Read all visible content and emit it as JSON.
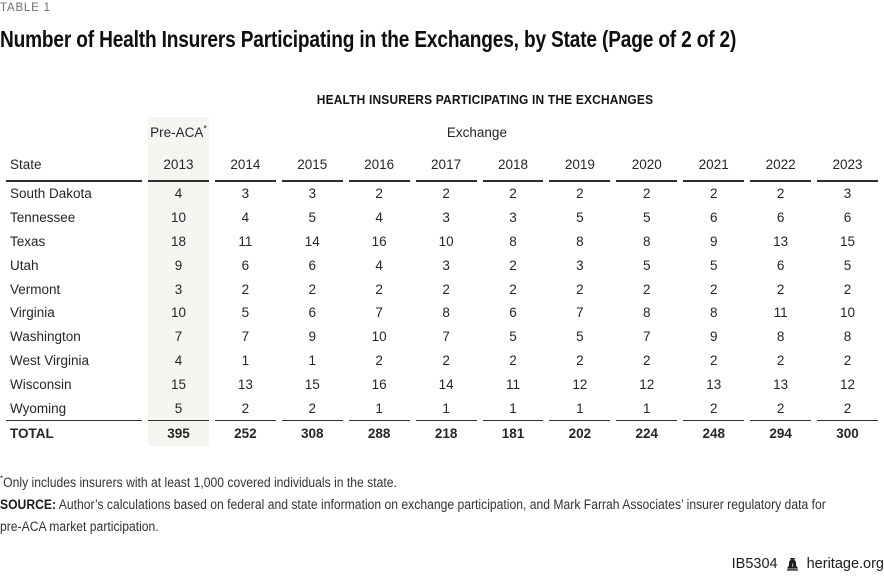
{
  "meta": {
    "table_label": "TABLE 1",
    "title": "Number of Health Insurers Participating in the Exchanges, by State (Page of 2 of 2)"
  },
  "chart_data": {
    "type": "table",
    "title": "HEALTH INSURERS PARTICIPATING IN THE EXCHANGES",
    "group_headers": {
      "pre_aca_label": "Pre-ACA",
      "pre_aca_sup": "*",
      "exchange_label": "Exchange"
    },
    "columns": [
      "State",
      "2013",
      "2014",
      "2015",
      "2016",
      "2017",
      "2018",
      "2019",
      "2020",
      "2021",
      "2022",
      "2023"
    ],
    "rows": [
      {
        "state": "South Dakota",
        "values": [
          4,
          3,
          3,
          2,
          2,
          2,
          2,
          2,
          2,
          2,
          3
        ]
      },
      {
        "state": "Tennessee",
        "values": [
          10,
          4,
          5,
          4,
          3,
          3,
          5,
          5,
          6,
          6,
          6
        ]
      },
      {
        "state": "Texas",
        "values": [
          18,
          11,
          14,
          16,
          10,
          8,
          8,
          8,
          9,
          13,
          15
        ]
      },
      {
        "state": "Utah",
        "values": [
          9,
          6,
          6,
          4,
          3,
          2,
          3,
          5,
          5,
          6,
          5
        ]
      },
      {
        "state": "Vermont",
        "values": [
          3,
          2,
          2,
          2,
          2,
          2,
          2,
          2,
          2,
          2,
          2
        ]
      },
      {
        "state": "Virginia",
        "values": [
          10,
          5,
          6,
          7,
          8,
          6,
          7,
          8,
          8,
          11,
          10
        ]
      },
      {
        "state": "Washington",
        "values": [
          7,
          7,
          9,
          10,
          7,
          5,
          5,
          7,
          9,
          8,
          8
        ]
      },
      {
        "state": "West Virginia",
        "values": [
          4,
          1,
          1,
          2,
          2,
          2,
          2,
          2,
          2,
          2,
          2
        ]
      },
      {
        "state": "Wisconsin",
        "values": [
          15,
          13,
          15,
          16,
          14,
          11,
          12,
          12,
          13,
          13,
          12
        ]
      },
      {
        "state": "Wyoming",
        "values": [
          5,
          2,
          2,
          1,
          1,
          1,
          1,
          1,
          2,
          2,
          2
        ]
      }
    ],
    "total": {
      "state": "TOTAL",
      "values": [
        395,
        252,
        308,
        288,
        218,
        181,
        202,
        224,
        248,
        294,
        300
      ]
    },
    "layout": {
      "highlight_column": "2013",
      "gridlines": "header-and-total-rules-only"
    }
  },
  "footnotes": {
    "asterisk_sup": "*",
    "asterisk_note": "Only includes insurers with at least 1,000 covered individuals in the state.",
    "source_label": "SOURCE:",
    "source_line1": "Author’s calculations based on federal and state information on exchange participation, and Mark Farrah Associates’ insurer regulatory data for",
    "source_line2": "pre-ACA market participation."
  },
  "footer": {
    "report_id": "IB5304",
    "site": "heritage.org",
    "icon": "liberty-bell-icon"
  },
  "colors": {
    "highlight_band": "#f5f5f2",
    "rule": "#2e2e2e",
    "body_text": "#262626",
    "muted_label": "#6f6f6f"
  }
}
